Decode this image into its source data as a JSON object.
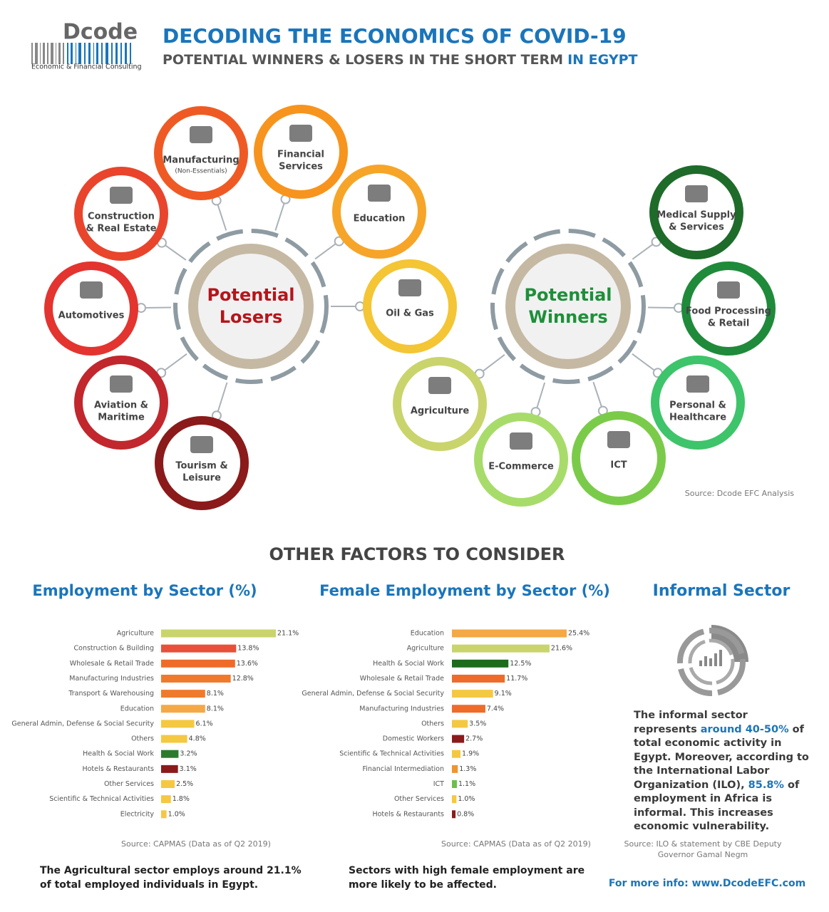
{
  "header": {
    "brand": "Dcode",
    "brand_sub": "Economic & Financial Consulting",
    "title": "DECODING THE ECONOMICS OF COVID-19",
    "subtitle": "POTENTIAL WINNERS & LOSERS IN THE SHORT TERM",
    "subtitle_highlight": "IN EGYPT"
  },
  "diagram": {
    "hubs": [
      {
        "lines": [
          "Potential",
          "Losers"
        ],
        "color": "#b5151b"
      },
      {
        "lines": [
          "Potential",
          "Winners"
        ],
        "color": "#1e8f3a"
      }
    ],
    "nodes": [
      {
        "lines": [
          "Manufacturing"
        ],
        "note": "(Non-Essentials)",
        "color": "#ef5a24"
      },
      {
        "lines": [
          "Financial",
          "Services"
        ],
        "color": "#f7941d"
      },
      {
        "lines": [
          "Construction",
          "& Real Estate"
        ],
        "color": "#e8452c"
      },
      {
        "lines": [
          "Education"
        ],
        "color": "#f6a529"
      },
      {
        "lines": [
          "Automotives"
        ],
        "color": "#e3342f"
      },
      {
        "lines": [
          "Oil & Gas"
        ],
        "color": "#f4c534"
      },
      {
        "lines": [
          "Aviation &",
          "Maritime"
        ],
        "color": "#c1272d"
      },
      {
        "lines": [
          "Tourism &",
          "Leisure"
        ],
        "color": "#8b1a1a"
      },
      {
        "lines": [
          "Medical Supply",
          "& Services"
        ],
        "color": "#1e6b2a"
      },
      {
        "lines": [
          "Food Processing",
          "& Retail"
        ],
        "color": "#1f8a3a"
      },
      {
        "lines": [
          "Personal &",
          "Healthcare"
        ],
        "color": "#3ec46a"
      },
      {
        "lines": [
          "Agriculture"
        ],
        "color": "#c9d46c"
      },
      {
        "lines": [
          "E-Commerce"
        ],
        "color": "#a8dc6a"
      },
      {
        "lines": [
          "ICT"
        ],
        "color": "#7bcb4a"
      }
    ],
    "source": "Source: Dcode EFC Analysis"
  },
  "section_title": "OTHER FACTORS TO CONSIDER",
  "chart_data": [
    {
      "type": "bar",
      "title": "Employment by Sector (%)",
      "categories": [
        "Agriculture",
        "Construction & Building",
        "Wholesale & Retail Trade",
        "Manufacturing Industries",
        "Transport & Warehousing",
        "Education",
        "General Admin, Defense & Social Security",
        "Others",
        "Health & Social Work",
        "Hotels & Restaurants",
        "Other Services",
        "Scientific & Technical Activities",
        "Electricity"
      ],
      "values": [
        21.1,
        13.8,
        13.6,
        12.8,
        8.1,
        8.1,
        6.1,
        4.8,
        3.2,
        3.1,
        2.5,
        1.8,
        1.0
      ],
      "value_labels": [
        "21.1%",
        "13.8%",
        "13.6%",
        "12.8%",
        "8.1%",
        "8.1%",
        "6.1%",
        "4.8%",
        "3.2%",
        "3.1%",
        "2.5%",
        "1.8%",
        "1.0%"
      ],
      "colors": [
        "#c9d46c",
        "#e8503a",
        "#ef6b2a",
        "#f07a2c",
        "#f07a2c",
        "#f4a846",
        "#f5c842",
        "#f5c842",
        "#2d7a2d",
        "#8b1a1a",
        "#f5c842",
        "#f5c842",
        "#f5c842"
      ],
      "source": "Source: CAPMAS (Data as of Q2 2019)",
      "note": [
        "The Agricultural sector employs around 21.1%",
        "of total employed individuals in Egypt."
      ]
    },
    {
      "type": "bar",
      "title": "Female Employment by Sector (%)",
      "categories": [
        "Education",
        "Agriculture",
        "Health & Social Work",
        "Wholesale & Retail Trade",
        "General Admin, Defense & Social Security",
        "Manufacturing Industries",
        "Others",
        "Domestic Workers",
        "Scientific & Technical Activities",
        "Financial Intermediation",
        "ICT",
        "Other Services",
        "Hotels & Restaurants"
      ],
      "values": [
        25.4,
        21.6,
        12.5,
        11.7,
        9.1,
        7.4,
        3.5,
        2.7,
        1.9,
        1.3,
        1.1,
        1.0,
        0.8
      ],
      "value_labels": [
        "25.4%",
        "21.6%",
        "12.5%",
        "11.7%",
        "9.1%",
        "7.4%",
        "3.5%",
        "2.7%",
        "1.9%",
        "1.3%",
        "1.1%",
        "1.0%",
        "0.8%"
      ],
      "colors": [
        "#f4a846",
        "#c9d46c",
        "#1e6b1e",
        "#ef6b2a",
        "#f5c842",
        "#ef6b2a",
        "#f5c842",
        "#8b1a1a",
        "#f5c842",
        "#f0952e",
        "#6cc04a",
        "#f5c842",
        "#8b1a1a"
      ],
      "source": "Source: CAPMAS (Data as of Q2 2019)",
      "note": [
        "Sectors with high female employment are",
        "more likely to be affected."
      ]
    }
  ],
  "informal": {
    "title": "Informal Sector",
    "paragraph": [
      {
        "text": "The informal sector represents "
      },
      {
        "text": "around 40-50%",
        "highlight": true
      },
      {
        "text": " of total economic activity in Egypt. Moreover, according to the International Labor Organization (ILO), "
      },
      {
        "text": "85.8%",
        "highlight": true
      },
      {
        "text": " of employment in Africa is informal. This increases economic vulnerability."
      }
    ],
    "source": [
      "Source: ILO & statement by CBE Deputy",
      "Governor Gamal Negm"
    ],
    "footer": "For more info: www.DcodeEFC.com"
  }
}
